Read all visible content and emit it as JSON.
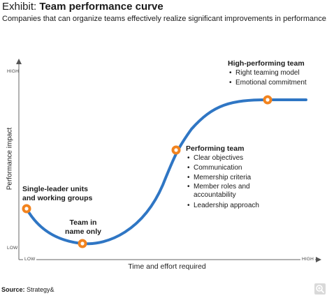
{
  "header": {
    "title_prefix": "Exhibit: ",
    "title": "Team performance curve",
    "subtitle": "Companies that can organize teams effectively realize significant improvements in performance."
  },
  "axes": {
    "y_label": "Performance impact",
    "y_high": "HIGH",
    "y_low": "LOW",
    "x_label": "Time and effort required",
    "x_low": "LOW",
    "x_high": "HIGH"
  },
  "stages": [
    {
      "title_lines": [
        "Single-leader units",
        "and working groups"
      ],
      "bullets": []
    },
    {
      "title_lines": [
        "Team in",
        "name only"
      ],
      "bullets": []
    },
    {
      "title_lines": [
        "Performing team"
      ],
      "bullets": [
        "Clear objectives",
        "Communication",
        "Memership criteria",
        "Member roles and accountability",
        "Leadership approach"
      ]
    },
    {
      "title_lines": [
        "High-performing team"
      ],
      "bullets": [
        "Right teaming model",
        "Emotional commitment"
      ]
    }
  ],
  "source": {
    "label": "Source:",
    "text": "Strategy&"
  },
  "colors": {
    "curve": "#2f76c4",
    "marker": "#f2831e",
    "axis": "#555555"
  },
  "zoom_control": {
    "icon": "zoom-icon"
  }
}
